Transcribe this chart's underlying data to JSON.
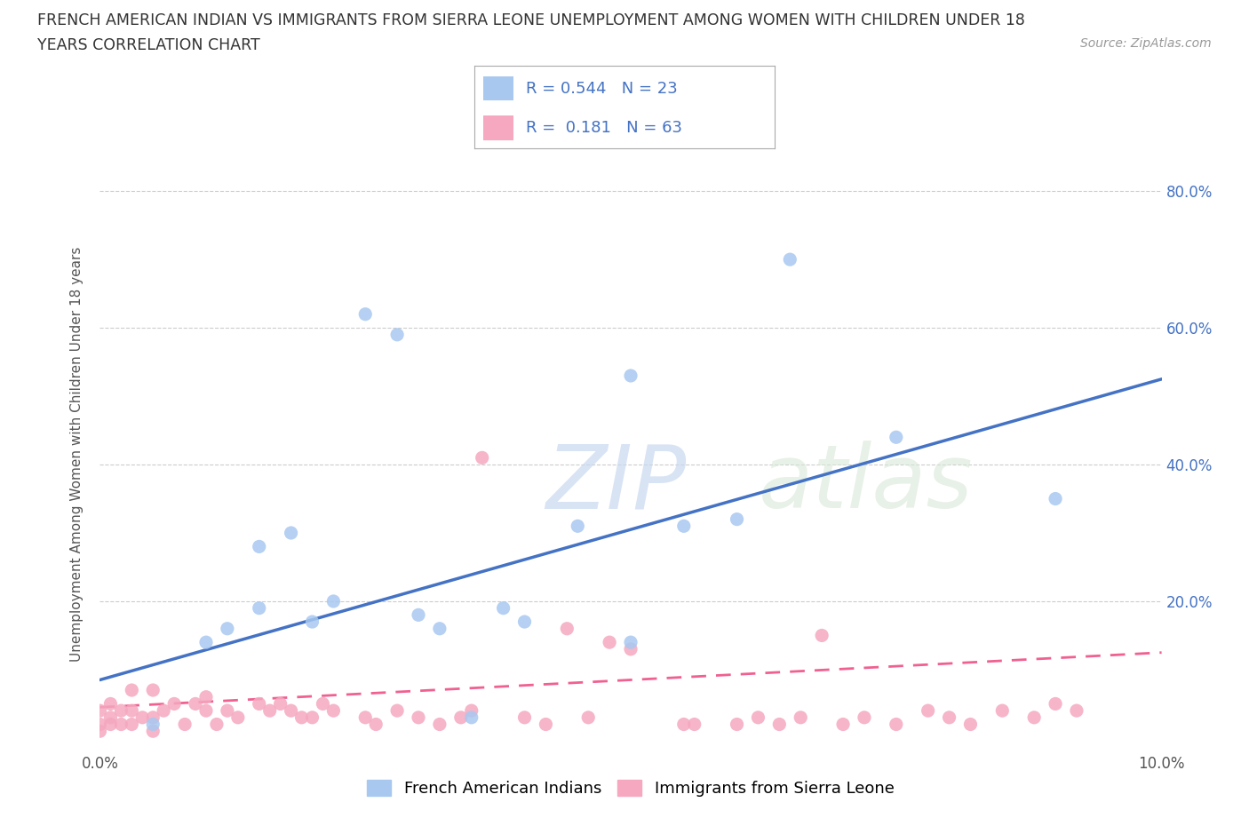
{
  "title_line1": "FRENCH AMERICAN INDIAN VS IMMIGRANTS FROM SIERRA LEONE UNEMPLOYMENT AMONG WOMEN WITH CHILDREN UNDER 18",
  "title_line2": "YEARS CORRELATION CHART",
  "source_text": "Source: ZipAtlas.com",
  "ylabel": "Unemployment Among Women with Children Under 18 years",
  "watermark_zip": "ZIP",
  "watermark_atlas": "atlas",
  "legend_label1": "French American Indians",
  "legend_label2": "Immigrants from Sierra Leone",
  "r1": "0.544",
  "n1": "23",
  "r2": "0.181",
  "n2": "63",
  "xlim": [
    0.0,
    0.1
  ],
  "ylim": [
    -0.02,
    0.85
  ],
  "color_blue": "#A8C8F0",
  "color_pink": "#F5A8C0",
  "line_blue": "#4472C4",
  "line_pink": "#F06090",
  "background_color": "#FFFFFF",
  "blue_scatter_x": [
    0.005,
    0.01,
    0.012,
    0.015,
    0.015,
    0.018,
    0.02,
    0.022,
    0.025,
    0.028,
    0.03,
    0.032,
    0.035,
    0.038,
    0.04,
    0.045,
    0.05,
    0.05,
    0.055,
    0.06,
    0.065,
    0.075,
    0.09
  ],
  "blue_scatter_y": [
    0.02,
    0.14,
    0.16,
    0.19,
    0.28,
    0.3,
    0.17,
    0.2,
    0.62,
    0.59,
    0.18,
    0.16,
    0.03,
    0.19,
    0.17,
    0.31,
    0.53,
    0.14,
    0.31,
    0.32,
    0.7,
    0.44,
    0.35
  ],
  "pink_scatter_x": [
    0.0,
    0.0,
    0.0,
    0.001,
    0.001,
    0.001,
    0.002,
    0.002,
    0.003,
    0.003,
    0.003,
    0.004,
    0.005,
    0.005,
    0.005,
    0.006,
    0.007,
    0.008,
    0.009,
    0.01,
    0.01,
    0.011,
    0.012,
    0.013,
    0.015,
    0.016,
    0.017,
    0.018,
    0.019,
    0.02,
    0.021,
    0.022,
    0.025,
    0.026,
    0.028,
    0.03,
    0.032,
    0.034,
    0.035,
    0.036,
    0.04,
    0.042,
    0.044,
    0.046,
    0.048,
    0.05,
    0.055,
    0.056,
    0.06,
    0.062,
    0.064,
    0.066,
    0.068,
    0.07,
    0.072,
    0.075,
    0.078,
    0.08,
    0.082,
    0.085,
    0.088,
    0.09,
    0.092
  ],
  "pink_scatter_y": [
    0.01,
    0.02,
    0.04,
    0.02,
    0.03,
    0.05,
    0.02,
    0.04,
    0.02,
    0.04,
    0.07,
    0.03,
    0.01,
    0.03,
    0.07,
    0.04,
    0.05,
    0.02,
    0.05,
    0.04,
    0.06,
    0.02,
    0.04,
    0.03,
    0.05,
    0.04,
    0.05,
    0.04,
    0.03,
    0.03,
    0.05,
    0.04,
    0.03,
    0.02,
    0.04,
    0.03,
    0.02,
    0.03,
    0.04,
    0.41,
    0.03,
    0.02,
    0.16,
    0.03,
    0.14,
    0.13,
    0.02,
    0.02,
    0.02,
    0.03,
    0.02,
    0.03,
    0.15,
    0.02,
    0.03,
    0.02,
    0.04,
    0.03,
    0.02,
    0.04,
    0.03,
    0.05,
    0.04
  ],
  "blue_line_x0": 0.0,
  "blue_line_y0": 0.085,
  "blue_line_x1": 0.1,
  "blue_line_y1": 0.525,
  "pink_line_x0": 0.0,
  "pink_line_y0": 0.045,
  "pink_line_x1": 0.1,
  "pink_line_y1": 0.125
}
